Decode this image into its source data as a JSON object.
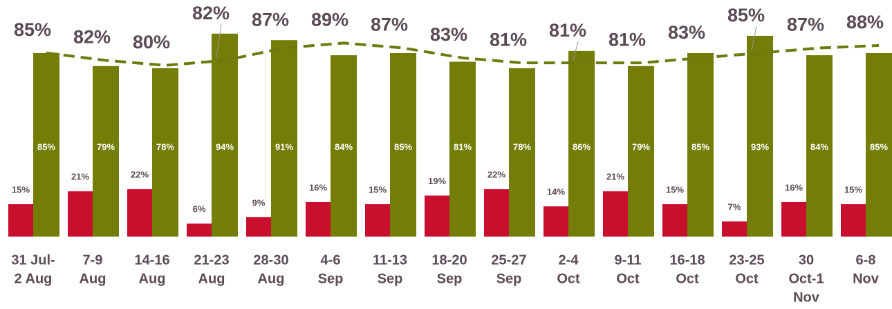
{
  "chart_data": {
    "type": "bar",
    "categories": [
      [
        "31 Jul-",
        "2 Aug"
      ],
      [
        "7-9",
        "Aug"
      ],
      [
        "14-16",
        "Aug"
      ],
      [
        "21-23",
        "Aug"
      ],
      [
        "28-30",
        "Aug"
      ],
      [
        "4-6",
        "Sep"
      ],
      [
        "11-13",
        "Sep"
      ],
      [
        "18-20",
        "Sep"
      ],
      [
        "25-27",
        "Sep"
      ],
      [
        "2-4",
        "Oct"
      ],
      [
        "9-11",
        "Oct"
      ],
      [
        "16-18",
        "Oct"
      ],
      [
        "23-25",
        "Oct"
      ],
      [
        "30",
        "Oct-1",
        "Nov"
      ],
      [
        "6-8",
        "Nov"
      ]
    ],
    "ylim": [
      0,
      100
    ],
    "y2lim": [
      11,
      98
    ],
    "series": [
      {
        "color": "#c8102e",
        "values": [
          15,
          21,
          22,
          6,
          9,
          16,
          15,
          19,
          22,
          14,
          21,
          15,
          7,
          16,
          15
        ],
        "value_labels": [
          "15%",
          "21%",
          "22%",
          "6%",
          "9%",
          "16%",
          "15%",
          "19%",
          "22%",
          "14%",
          "21%",
          "15%",
          "7%",
          "16%",
          "15%"
        ]
      },
      {
        "color": "#737d07",
        "values": [
          85,
          79,
          78,
          94,
          91,
          84,
          85,
          81,
          78,
          86,
          79,
          85,
          93,
          84,
          85
        ],
        "value_labels": [
          "85%",
          "79%",
          "78%",
          "94%",
          "91%",
          "84%",
          "85%",
          "81%",
          "78%",
          "86%",
          "79%",
          "85%",
          "93%",
          "84%",
          "85%"
        ]
      },
      {
        "type": "line",
        "axis": "y2",
        "color": "#6e7a10",
        "values": [
          85,
          82,
          80,
          82,
          87,
          89,
          87,
          83,
          81,
          81,
          81,
          83,
          85,
          87,
          88
        ],
        "value_labels": [
          "85%",
          "82%",
          "80%",
          "82%",
          "87%",
          "89%",
          "87%",
          "83%",
          "81%",
          "81%",
          "81%",
          "83%",
          "85%",
          "87%",
          "88%"
        ]
      }
    ]
  }
}
